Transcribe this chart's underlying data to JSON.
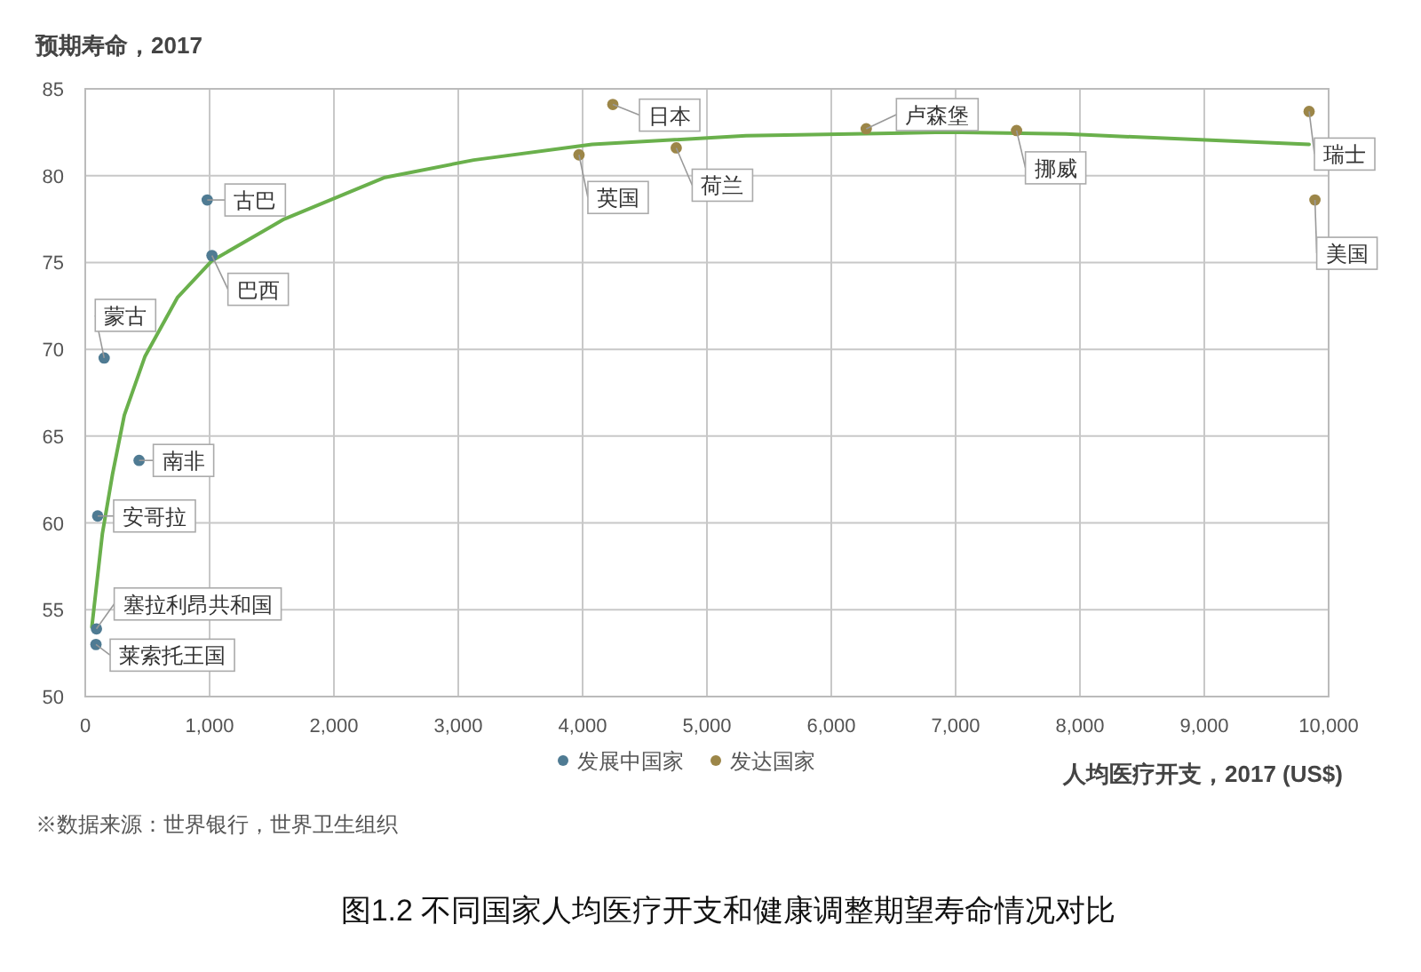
{
  "chart_data": {
    "type": "scatter",
    "title": "图1.2 不同国家人均医疗开支和健康调整期望寿命情况对比",
    "xlabel": "人均医疗开支，2017 (US$)",
    "ylabel": "预期寿命，2017",
    "xlim": [
      0,
      10000
    ],
    "ylim": [
      50,
      85
    ],
    "xticks": [
      0,
      {
        "value": 1000,
        "label": "1,000"
      },
      {
        "value": 2000,
        "label": "2,000"
      },
      {
        "value": 3000,
        "label": "3,000"
      },
      {
        "value": 4000,
        "label": "4,000"
      },
      {
        "value": 5000,
        "label": "5,000"
      },
      {
        "value": 6000,
        "label": "6,000"
      },
      {
        "value": 7000,
        "label": "7,000"
      },
      {
        "value": 8000,
        "label": "8,000"
      },
      {
        "value": 9000,
        "label": "9,000"
      },
      {
        "value": 10000,
        "label": "10,000"
      }
    ],
    "yticks": [
      50,
      55,
      60,
      65,
      70,
      75,
      80,
      85
    ],
    "grid": true,
    "legend": "bottom",
    "series": [
      {
        "name": "发展中国家",
        "color": "#4f7b93",
        "marker": "circle",
        "x": [
          981,
          1019,
          152,
          433,
          100,
          90,
          86
        ],
        "values": [
          78.6,
          75.4,
          69.5,
          63.6,
          60.4,
          53.9,
          53.0
        ]
      },
      {
        "name": "发达国家",
        "color": "#9c8648",
        "marker": "circle",
        "x": [
          4243,
          3971,
          4753,
          6281,
          7490,
          9843,
          9890
        ],
        "values": [
          84.1,
          81.2,
          81.6,
          82.7,
          82.6,
          83.7,
          78.6
        ]
      },
      {
        "type": "line",
        "color": "#6ab04c",
        "x": [
          53,
          138,
          219,
          314,
          481,
          743,
          1019,
          1600,
          2410,
          3124,
          4076,
          5314,
          6928,
          7886,
          9843
        ],
        "values": [
          54.0,
          59.4,
          62.8,
          66.2,
          69.6,
          73.0,
          75.1,
          77.5,
          79.9,
          80.9,
          81.8,
          82.3,
          82.5,
          82.4,
          81.8
        ]
      }
    ],
    "annotations": [
      {
        "text": "古巴",
        "x": 981,
        "y": 78.6
      },
      {
        "text": "巴西",
        "x": 1019,
        "y": 75.4
      },
      {
        "text": "蒙古",
        "x": 152,
        "y": 69.5
      },
      {
        "text": "南非",
        "x": 433,
        "y": 63.6
      },
      {
        "text": "安哥拉",
        "x": 100,
        "y": 60.4
      },
      {
        "text": "塞拉利昂共和国",
        "x": 90,
        "y": 53.9
      },
      {
        "text": "莱索托王国",
        "x": 86,
        "y": 53.0
      },
      {
        "text": "日本",
        "x": 4243,
        "y": 84.1
      },
      {
        "text": "英国",
        "x": 3971,
        "y": 81.2
      },
      {
        "text": "荷兰",
        "x": 4753,
        "y": 81.6
      },
      {
        "text": "卢森堡",
        "x": 6281,
        "y": 82.7
      },
      {
        "text": "挪威",
        "x": 7490,
        "y": 82.6
      },
      {
        "text": "瑞士",
        "x": 9843,
        "y": 83.7
      },
      {
        "text": "美国",
        "x": 9890,
        "y": 78.6
      },
      "※数据来源：世界银行，世界卫生组织"
    ]
  }
}
